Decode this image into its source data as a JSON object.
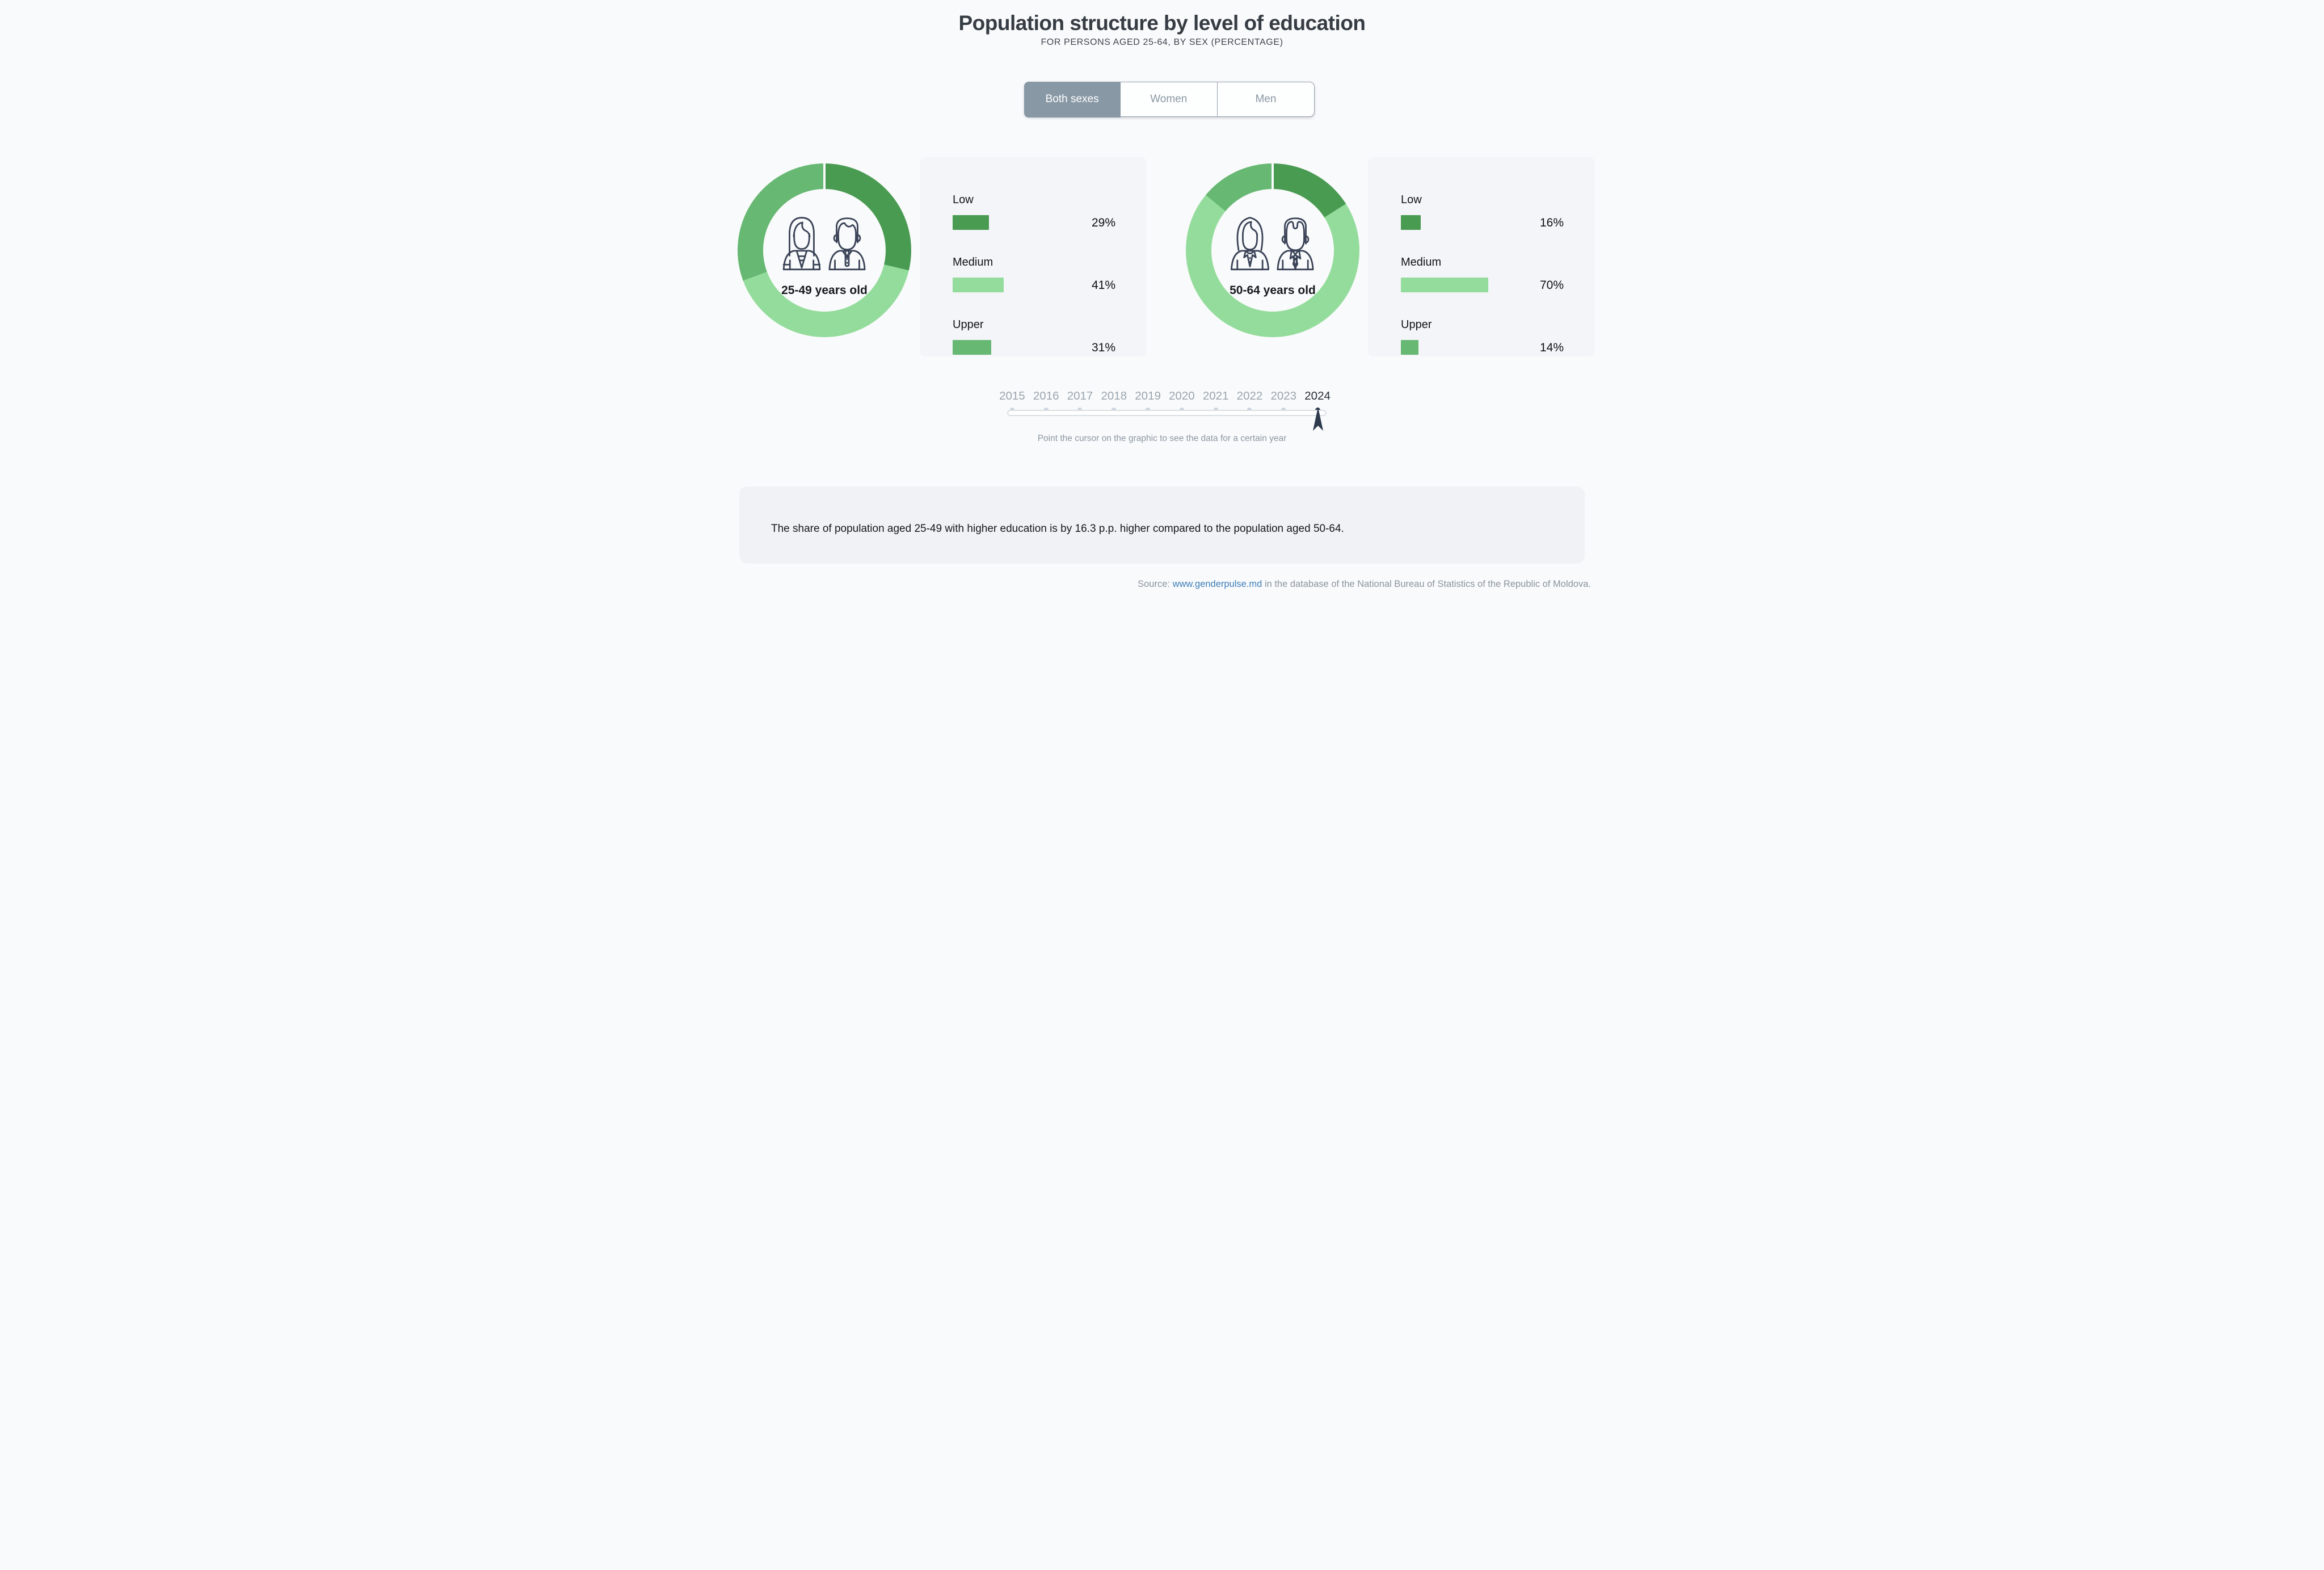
{
  "page": {
    "title": "Population structure by level of education",
    "subtitle": "FOR PERSONS AGED 25-64, BY SEX (PERCENTAGE)"
  },
  "tabs": [
    {
      "label": "Both sexes",
      "active": true
    },
    {
      "label": "Women",
      "active": false
    },
    {
      "label": "Men",
      "active": false
    }
  ],
  "chart_data": [
    {
      "type": "donut",
      "title": "25-49 years old",
      "categories": [
        "Low",
        "Medium",
        "Upper"
      ],
      "values": [
        29,
        41,
        31
      ],
      "value_labels": [
        "29%",
        "41%",
        "31%"
      ],
      "colors": [
        "#4A9B52",
        "#94DC9C",
        "#67B873"
      ],
      "unit": "%",
      "legend_position": "right",
      "center_icon": "young-woman-and-man"
    },
    {
      "type": "donut",
      "title": "50-64 years old",
      "categories": [
        "Low",
        "Medium",
        "Upper"
      ],
      "values": [
        16,
        70,
        14
      ],
      "value_labels": [
        "16%",
        "70%",
        "14%"
      ],
      "colors": [
        "#4A9B52",
        "#94DC9C",
        "#67B873"
      ],
      "unit": "%",
      "legend_position": "right",
      "center_icon": "older-woman-and-man"
    }
  ],
  "slider": {
    "years": [
      "2015",
      "2016",
      "2017",
      "2018",
      "2019",
      "2020",
      "2021",
      "2022",
      "2023",
      "2024"
    ],
    "selected_year": "2024",
    "hint": "Point the cursor on the graphic to see the data for a certain year"
  },
  "note": "The share of population aged 25-49 with higher education is by 16.3 p.p. higher compared to the population aged 50-64.",
  "source": {
    "prefix": "Source: ",
    "link_text": "www.genderpulse.md",
    "suffix": " in the database of the National Bureau of Statistics of the Republic of Moldova."
  },
  "colors": {
    "page_bg": "#F9FAFB",
    "panel_bg": "#F3F5F8",
    "note_bg": "#F0F2F5",
    "active_tab_bg": "#8898A5",
    "marker": "#2E3A4E",
    "link": "#3D7FB8",
    "icon_stroke": "#3A4357",
    "low_green": "#4A9B52",
    "medium_green": "#94DC9C",
    "upper_green": "#67B873"
  }
}
